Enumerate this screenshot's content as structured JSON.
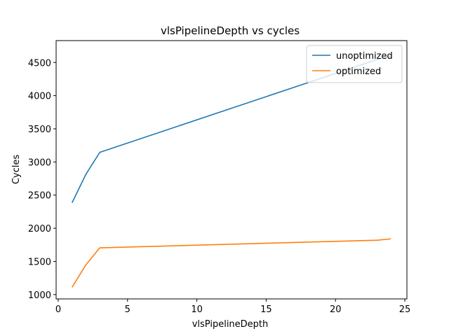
{
  "chart_data": {
    "type": "line",
    "title": "vlsPipelineDepth vs cycles",
    "xlabel": "vlsPipelineDepth",
    "ylabel": "Cycles",
    "xlim": [
      -0.15,
      25.15
    ],
    "ylim": [
      935,
      4830
    ],
    "xticks": [
      0,
      5,
      10,
      15,
      20,
      25
    ],
    "yticks": [
      1000,
      1500,
      2000,
      2500,
      3000,
      3500,
      4000,
      4500
    ],
    "grid": false,
    "legend_position": "top-right",
    "series": [
      {
        "name": "unoptimized",
        "color": "#1f77b4",
        "x": [
          1,
          2,
          3,
          23,
          24
        ],
        "y": [
          2385,
          2815,
          3145,
          4545,
          4600
        ]
      },
      {
        "name": "optimized",
        "color": "#ff7f0e",
        "x": [
          1,
          2,
          3,
          23,
          24
        ],
        "y": [
          1110,
          1450,
          1705,
          1820,
          1840
        ]
      }
    ]
  }
}
